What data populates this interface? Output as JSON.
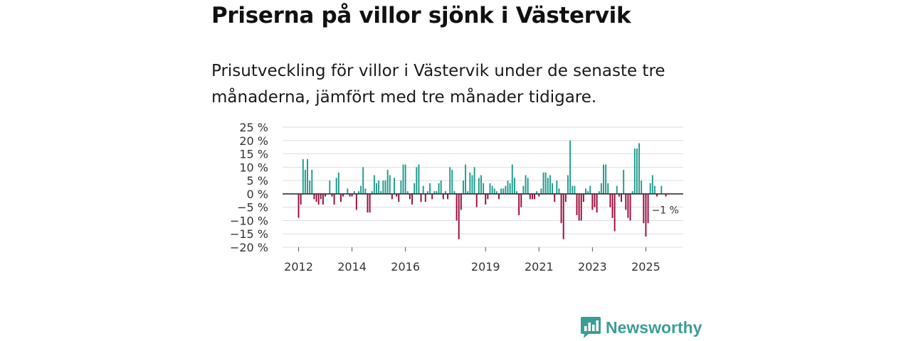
{
  "title": "Priserna på villor sjönk i Västervik",
  "subtitle": "Prisutveckling för villor i Västervik under de senaste tre månaderna, jämfört med tre månader tidigare.",
  "colors": {
    "positive": "#1f9c91",
    "negative": "#9b0d3d",
    "grid": "#dddddd",
    "axis": "#333333"
  },
  "brand": {
    "name": "Newsworthy",
    "icon": "bar-chart-speech-icon",
    "color": "#3a9e96"
  },
  "chart_data": {
    "type": "bar",
    "ylim": [
      -20,
      25
    ],
    "y_ticks": [
      25,
      20,
      15,
      10,
      5,
      0,
      -5,
      -10,
      -15,
      -20
    ],
    "y_tick_labels": [
      "25 %",
      "20 %",
      "15 %",
      "10 %",
      "5 %",
      "0 %",
      "−5 %",
      "−10 %",
      "−15 %",
      "−20 %"
    ],
    "x_range": [
      2011.4,
      2026.4
    ],
    "x_ticks": [
      2012,
      2014,
      2016,
      2019,
      2021,
      2023,
      2025
    ],
    "x_tick_labels": [
      "2012",
      "2014",
      "2016",
      "2019",
      "2021",
      "2023",
      "2025"
    ],
    "end_label": "−1 %",
    "series": [
      {
        "name": "Prisutveckling",
        "start": 2012.0,
        "step": 0.08333,
        "values": [
          -9,
          -4,
          13,
          9,
          13,
          5,
          9,
          -2,
          -3,
          -4,
          -2,
          -4,
          -1,
          0,
          5,
          -1,
          -4,
          6,
          8,
          -3,
          -1,
          0,
          2,
          -1,
          -1,
          1,
          -6,
          1,
          3,
          10,
          2,
          -7,
          -7,
          1,
          7,
          4,
          5,
          1,
          5,
          5,
          9,
          7,
          -2,
          6,
          -1,
          -3,
          5,
          11,
          11,
          1,
          -2,
          -4,
          4,
          10,
          11,
          -3,
          3,
          -3,
          1,
          4,
          -2,
          1,
          1,
          4,
          5,
          -2,
          1,
          -2,
          10,
          9,
          1,
          -10,
          -17,
          -6,
          5,
          11,
          1,
          8,
          7,
          10,
          -5,
          6,
          7,
          4,
          -4,
          -2,
          4,
          3,
          2,
          1,
          -2,
          2,
          2,
          3,
          5,
          4,
          11,
          6,
          1,
          -8,
          -5,
          3,
          7,
          6,
          -2,
          -2,
          -2,
          1,
          -1,
          2,
          8,
          8,
          6,
          7,
          4,
          -3,
          5,
          2,
          -11,
          -17,
          -3,
          7,
          20,
          3,
          3,
          -8,
          -10,
          -10,
          -3,
          2,
          1,
          3,
          -6,
          -5,
          -7,
          1,
          4,
          11,
          11,
          4,
          -5,
          -9,
          -14,
          3,
          -1,
          -3,
          9,
          -6,
          -9,
          -10,
          1,
          17,
          17,
          19,
          5,
          -11,
          -16,
          -11,
          4,
          7,
          3,
          -1,
          0,
          3,
          0,
          -1
        ]
      }
    ]
  }
}
